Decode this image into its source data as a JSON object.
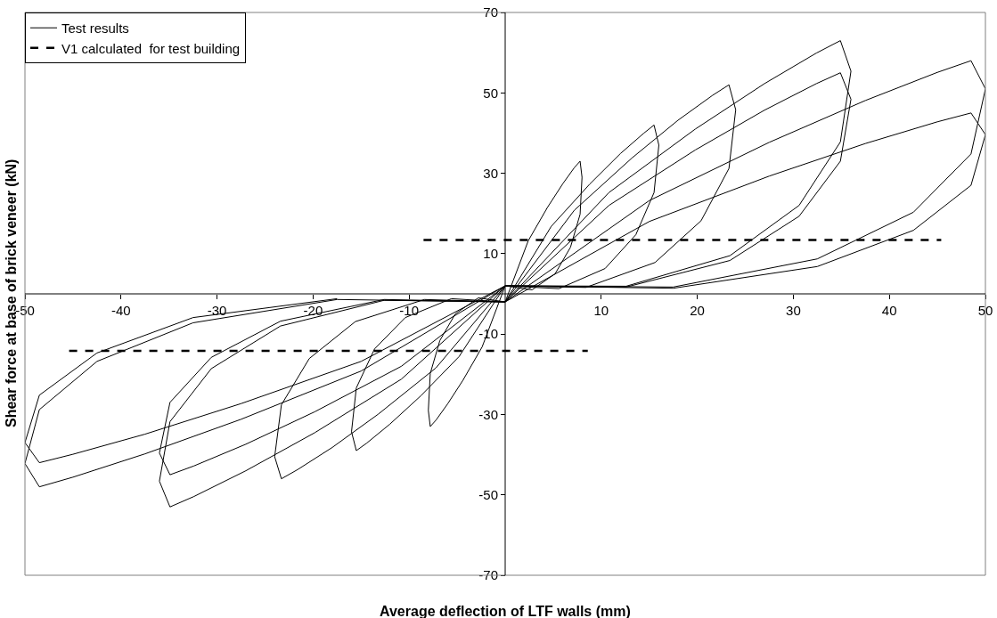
{
  "chart_data": {
    "type": "line",
    "xlabel": "Average deflection of LTF walls (mm)",
    "ylabel": "Shear force at base of brick veneer (kN)",
    "xlim": [
      -50,
      50
    ],
    "xticks": [
      -50,
      -40,
      -30,
      -20,
      -10,
      10,
      20,
      30,
      40,
      50
    ],
    "ylim": [
      -70,
      70
    ],
    "yticks": [
      -70,
      -50,
      -30,
      -10,
      10,
      30,
      50,
      70
    ],
    "grid": false,
    "legend": "top left",
    "marker": "none",
    "series": [
      {
        "name": "Test results",
        "color": "#000000",
        "line_style": "solid",
        "x": [
          0,
          2.4,
          4.4,
          6,
          7.2,
          7.8,
          8,
          7.8,
          6.8,
          5.2,
          2.8,
          0,
          -2.4,
          -4.4,
          -6,
          -7.2,
          -7.8,
          -8,
          -7.8,
          -6.8,
          -5.2,
          -2.8,
          0,
          4.8,
          8.8,
          12,
          14.4,
          15.5,
          16,
          15.5,
          13.6,
          10.4,
          5.6,
          0,
          -4.8,
          -8.8,
          -12,
          -14.4,
          -15.5,
          -16,
          -15.5,
          -13.6,
          -10.4,
          -5.6,
          0,
          7.2,
          13.2,
          18,
          21.6,
          23.3,
          24,
          23.3,
          20.4,
          15.6,
          8.4,
          0,
          -7.2,
          -13.2,
          -18,
          -21.6,
          -23.3,
          -24,
          -23.3,
          -20.4,
          -15.6,
          -8.4,
          0,
          10.8,
          19.8,
          27,
          32.4,
          34.9,
          36,
          34.9,
          30.6,
          23.4,
          12.6,
          0,
          -10.8,
          -19.8,
          -27,
          -32.4,
          -34.9,
          -36,
          -34.9,
          -30.6,
          -23.4,
          -12.6,
          0,
          10.8,
          19.8,
          27,
          32.4,
          34.9,
          36,
          34.9,
          30.6,
          23.4,
          12.6,
          0,
          -10.8,
          -19.8,
          -27,
          -32.4,
          -34.9,
          -36,
          -34.9,
          -30.6,
          -23.4,
          -12.6,
          0,
          15,
          27.5,
          37.5,
          45,
          48.5,
          50,
          48.5,
          42.5,
          32.5,
          17.5,
          0,
          -15,
          -27.5,
          -37.5,
          -45,
          -48.5,
          -50,
          -48.5,
          -42.5,
          -32.5,
          -17.5,
          0,
          15,
          27.5,
          37.5,
          45,
          48.5,
          50,
          48.5,
          42.5,
          32.5,
          17.5,
          0,
          -15,
          -27.5,
          -37.5,
          -45,
          -48.5,
          -50,
          -48.5,
          -42.5,
          -32.5,
          -17.5
        ],
        "values": [
          -2,
          13.2,
          21.5,
          27.4,
          31.4,
          33,
          29,
          19.8,
          11.6,
          5,
          1,
          2,
          -13.2,
          -21.5,
          -27.4,
          -31.4,
          -33,
          -29,
          -19.8,
          -11.6,
          -5,
          -1,
          -2,
          16.8,
          27.3,
          34.9,
          39.9,
          42,
          37,
          25.2,
          14.7,
          6.3,
          1.3,
          2,
          -15.6,
          -25.4,
          -32.4,
          -37.1,
          -39,
          -34.3,
          -23.4,
          -13.7,
          -5.9,
          -1.2,
          -2,
          20.8,
          33.8,
          43.2,
          49.4,
          52,
          45.8,
          31.2,
          18.2,
          7.8,
          1.6,
          2,
          -18.4,
          -29.9,
          -38.2,
          -43.7,
          -46,
          -40.5,
          -27.6,
          -16.1,
          -6.9,
          -1.4,
          -2,
          25.2,
          41,
          52.3,
          59.9,
          63,
          55.4,
          37.8,
          22,
          9.5,
          1.9,
          2,
          -21.2,
          -34.5,
          -44,
          -50.4,
          -53,
          -46.6,
          -31.8,
          -18.6,
          -8,
          -1.6,
          -2,
          22,
          35.8,
          45.7,
          52.3,
          55,
          48.4,
          33,
          19.3,
          8.3,
          1.7,
          2,
          -18,
          -29.3,
          -37.4,
          -42.8,
          -45,
          -39.6,
          -27,
          -15.8,
          -6.8,
          -1.4,
          -2,
          23.2,
          37.7,
          48.1,
          55.1,
          58,
          51,
          34.8,
          20.3,
          8.7,
          1.7,
          2,
          -19.2,
          -31.2,
          -39.8,
          -45.6,
          -48,
          -42.2,
          -28.8,
          -16.8,
          -7.2,
          -1.4,
          -2,
          18,
          29.3,
          37.4,
          42.8,
          45,
          39.6,
          27,
          15.8,
          6.8,
          1.4,
          2,
          -16.8,
          -27.3,
          -34.9,
          -39.9,
          -42,
          -37,
          -25.2,
          -14.7,
          -5.9,
          -1.2
        ]
      },
      {
        "name": "V1 calculated  for test building",
        "color": "#000000",
        "line_style": "dashed",
        "x": [
          -45.4,
          8.6,
          null,
          -8.5,
          45.4
        ],
        "values": [
          -14.2,
          -14.2,
          null,
          13.4,
          13.4
        ]
      }
    ]
  }
}
